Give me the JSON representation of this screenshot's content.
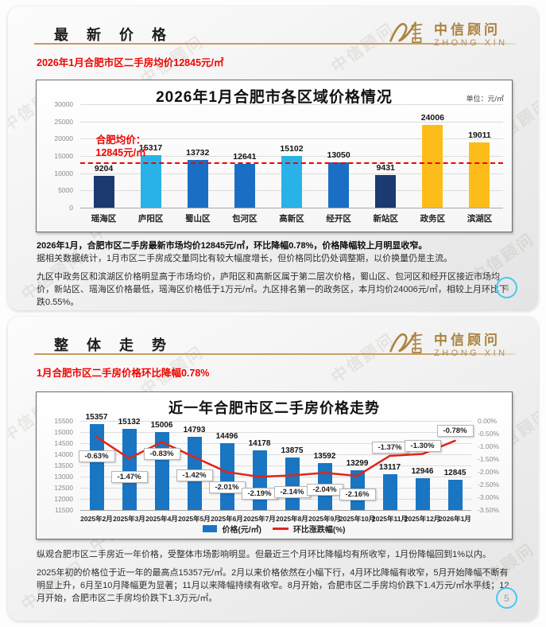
{
  "watermark": "中信顾问",
  "brand": {
    "name_cn": "中信顾问",
    "name_en": "ZHONG XIN",
    "gold": "#a9813b"
  },
  "slide1": {
    "section_title": "最 新 价 格",
    "headline": "2026年1月合肥市区二手房均价12845元/㎡",
    "page_number": "4",
    "analysis_line1": "2026年1月，合肥市区二手房最新市场均价12845元/㎡，环比降幅0.78%，价格降幅较上月明显收窄。",
    "analysis_line2": "据相关数据统计，1月市区二手房成交量同比有较大幅度增长，但价格同比仍处调整期，以价换量仍是主流。",
    "analysis_para2": "九区中政务区和滨湖区价格明显高于市场均价，庐阳区和高新区属于第二层次价格，蜀山区、包河区和经开区接近市场均价，新站区、瑶海区价格最低，瑶海区价格低于1万元/㎡。九区排名第一的政务区，本月均价24006元/㎡，相较上月环比下跌0.55%。"
  },
  "slide2": {
    "section_title": "整 体 走 势",
    "headline": "1月合肥市区二手房价格环比降幅0.78%",
    "page_number": "5",
    "analysis_para1": "纵观合肥市区二手房近一年价格，受整体市场影响明显。但最近三个月环比降幅均有所收窄，1月份降幅回到1%以内。",
    "analysis_para2": "2025年初的价格位于近一年的最高点15357元/㎡。2月以来价格依然在小幅下行，4月环比降幅有收窄，5月开始降幅不断有明显上升，6月至10月降幅更为显著；11月以来降幅持续有收窄。8月开始，合肥市区二手房均价跌下1.4万元/㎡水平线；12月开始，合肥市区二手房均价跌下1.3万元/㎡。"
  },
  "chart_data": [
    {
      "type": "bar",
      "title": "2026年1月合肥市各区域价格情况",
      "unit_label": "单位：元/㎡",
      "categories": [
        "瑶海区",
        "庐阳区",
        "蜀山区",
        "包河区",
        "高新区",
        "经开区",
        "新站区",
        "政务区",
        "滨湖区"
      ],
      "values": [
        9204,
        15317,
        13732,
        12641,
        15102,
        13050,
        9431,
        24006,
        19011
      ],
      "bar_colors": [
        "#1b3a70",
        "#29b2e8",
        "#1a6fc4",
        "#1a6fc4",
        "#29b2e8",
        "#1a6fc4",
        "#1b3a70",
        "#fcbd1b",
        "#fcbd1b"
      ],
      "ylim": [
        0,
        30000
      ],
      "ytick_step": 5000,
      "grid": true,
      "legend": "none",
      "avg_line": {
        "value": 12845,
        "label_line1": "合肥均价：",
        "label_line2": "12845元/㎡",
        "color": "#ee0400"
      }
    },
    {
      "type": "bar+line",
      "title": "近一年合肥市区二手房价格走势",
      "categories": [
        "2025年2月",
        "2025年3月",
        "2025年4月",
        "2025年5月",
        "2025年6月",
        "2025年7月",
        "2025年8月",
        "2025年9月",
        "2025年10月",
        "2025年11月",
        "2025年12月",
        "2026年1月"
      ],
      "series": [
        {
          "name": "价格(元/㎡)",
          "type": "bar",
          "color": "#1a75c2",
          "values": [
            15357,
            15132,
            15006,
            14793,
            14496,
            14178,
            13875,
            13592,
            13299,
            13117,
            12946,
            12845
          ]
        },
        {
          "name": "环比涨跌幅(%)",
          "type": "line",
          "color": "#e1251b",
          "values": [
            -0.63,
            -1.47,
            -0.83,
            -1.42,
            -2.01,
            -2.19,
            -2.14,
            -2.04,
            -2.16,
            -1.37,
            -1.3,
            -0.78
          ],
          "labels": [
            "-0.63%",
            "-1.47%",
            "-0.83%",
            "-1.42%",
            "-2.01%",
            "-2.19%",
            "-2.14%",
            "-2.04%",
            "-2.16%",
            "-1.37%",
            "-1.30%",
            "-0.78%"
          ]
        }
      ],
      "ylim_left": [
        11500,
        15500
      ],
      "ytick_step_left": 500,
      "ylim_right": [
        -3.5,
        0
      ],
      "ytick_step_right": 0.5,
      "grid": true,
      "legend": "bottom-center",
      "label_dy": [
        24,
        23,
        14,
        23,
        19,
        21,
        21,
        21,
        23,
        -11,
        -11,
        -13
      ]
    }
  ]
}
